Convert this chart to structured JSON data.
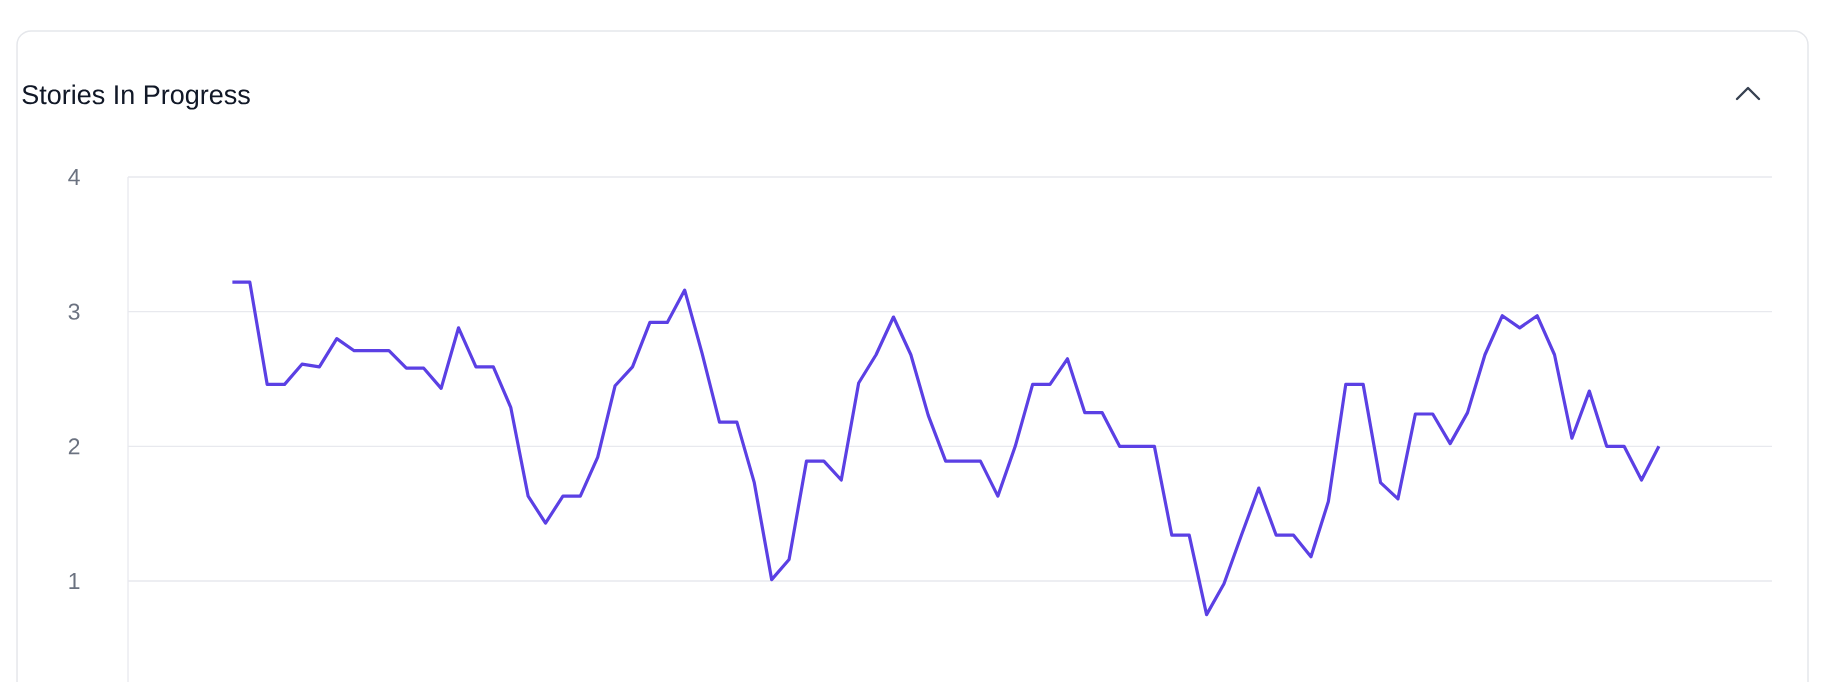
{
  "chart_data": {
    "type": "line",
    "title": "Stories In Progress",
    "categories": [
      null,
      null,
      null,
      null,
      null,
      null,
      null,
      null,
      null,
      null,
      null,
      null,
      null,
      null,
      null,
      null,
      null,
      null,
      null,
      null,
      null,
      null,
      null,
      null,
      null,
      null,
      null,
      null,
      null,
      null,
      null,
      null,
      null,
      null,
      null,
      null,
      null,
      null,
      null,
      null,
      null,
      null,
      null,
      null,
      null,
      null,
      null,
      null,
      null,
      null,
      null,
      null,
      null,
      null,
      null,
      null,
      null,
      null,
      null,
      null,
      null,
      null,
      null,
      null,
      null,
      null,
      null,
      null,
      null,
      null,
      null,
      null,
      null,
      null,
      null,
      null,
      null,
      null,
      null,
      null,
      null,
      null,
      null
    ],
    "values": [
      3.22,
      3.22,
      2.46,
      2.46,
      2.61,
      2.59,
      2.8,
      2.71,
      2.71,
      2.71,
      2.58,
      2.58,
      2.43,
      2.88,
      2.59,
      2.59,
      2.29,
      1.63,
      1.43,
      1.63,
      1.63,
      1.92,
      2.45,
      2.59,
      2.92,
      2.92,
      3.16,
      2.69,
      2.18,
      2.18,
      1.73,
      1.01,
      1.16,
      1.89,
      1.89,
      1.75,
      2.47,
      2.68,
      2.96,
      2.68,
      2.23,
      1.89,
      1.89,
      1.89,
      1.63,
      2.0,
      2.46,
      2.46,
      2.65,
      2.25,
      2.25,
      2.0,
      2.0,
      2.0,
      1.34,
      1.34,
      0.75,
      0.98,
      1.34,
      1.69,
      1.34,
      1.34,
      1.18,
      1.59,
      2.46,
      2.46,
      1.73,
      1.61,
      2.24,
      2.24,
      2.02,
      2.25,
      2.68,
      2.97,
      2.88,
      2.97,
      2.68,
      2.06,
      2.41,
      2.0,
      2.0,
      1.75,
      2.0
    ],
    "color": "#5b40e4",
    "ylim": [
      0.25,
      4
    ],
    "yticks": [
      1,
      2,
      3,
      4
    ],
    "grid": "y",
    "tick_labels": "y",
    "marker": "none",
    "line_style": "solid"
  }
}
